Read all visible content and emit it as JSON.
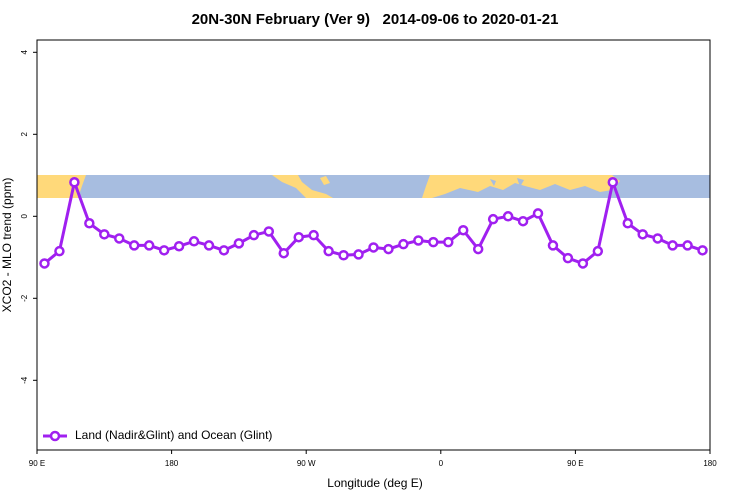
{
  "chart_data": {
    "type": "line",
    "title": "20N-30N February (Ver 9)   2014-09-06 to 2020-01-21",
    "x_label": "Longitude (deg E)",
    "y_label": "XCO2 - MLO trend (ppm)",
    "x": [
      95,
      105,
      115,
      125,
      135,
      145,
      155,
      165,
      175,
      185,
      195,
      205,
      215,
      225,
      235,
      245,
      255,
      265,
      275,
      285,
      295,
      305,
      315,
      325,
      335,
      345,
      355,
      365,
      375,
      385,
      395,
      405,
      415,
      425,
      435,
      445,
      455,
      465,
      475,
      485,
      495,
      505,
      515,
      525,
      535
    ],
    "series": [
      {
        "name": "Land (Nadir&Glint) and Ocean (Glint)",
        "color": "#a020f0",
        "values": [
          -1.15,
          -0.85,
          0.83,
          -0.17,
          -0.44,
          -0.54,
          -0.71,
          -0.71,
          -0.83,
          -0.73,
          -0.61,
          -0.71,
          -0.83,
          -0.66,
          -0.46,
          -0.37,
          -0.9,
          -0.51,
          -0.46,
          -0.85,
          -0.95,
          -0.93,
          -0.76,
          -0.8,
          -0.68,
          -0.59,
          -0.63,
          -0.63,
          -0.34,
          -0.8,
          -0.07,
          0.0,
          -0.12,
          0.07,
          -0.71,
          -1.02,
          -1.15,
          -0.85,
          0.83,
          -0.17,
          -0.44,
          -0.54,
          -0.71,
          -0.71,
          -0.83
        ]
      }
    ],
    "xlim": [
      90,
      540
    ],
    "xticks": [
      {
        "value": 90,
        "label": "90 E"
      },
      180,
      {
        "value": 270,
        "label": "90 W"
      },
      {
        "value": 360,
        "label": "0"
      },
      {
        "value": 450,
        "label": "90 E"
      },
      {
        "value": 540,
        "label": "180"
      }
    ],
    "ylim": [
      -5.7,
      4.3
    ],
    "yticks": [
      -4,
      -2,
      0,
      2,
      4
    ],
    "legend": "bottom-left"
  }
}
